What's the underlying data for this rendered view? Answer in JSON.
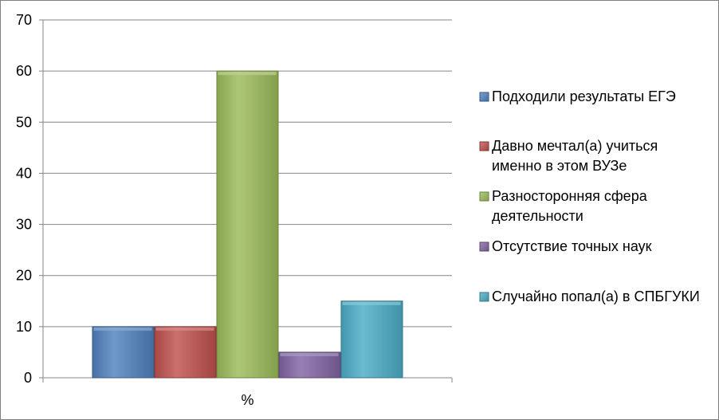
{
  "chart_data": {
    "type": "bar",
    "categories": [
      "%"
    ],
    "series": [
      {
        "name": "Подходили результаты ЕГЭ",
        "values": [
          10
        ],
        "color": "#4f81bd",
        "legend_lines": [
          "Подходили результаты ЕГЭ"
        ]
      },
      {
        "name": "Давно мечтал(а) учиться именно в этом ВУЗе",
        "values": [
          10
        ],
        "color": "#c0504d",
        "legend_lines": [
          "Давно мечтал(а) учиться",
          "именно в этом ВУЗе"
        ]
      },
      {
        "name": "Разносторонняя сфера деятельности",
        "values": [
          60
        ],
        "color": "#9bbb59",
        "legend_lines": [
          "Разносторонняя сфера",
          "деятельности"
        ]
      },
      {
        "name": "Отсутствие точных наук",
        "values": [
          5
        ],
        "color": "#8064a2",
        "legend_lines": [
          "Отсутствие точных наук"
        ]
      },
      {
        "name": "Случайно попал(а) в СПБГУКИ",
        "values": [
          15
        ],
        "color": "#4bacc6",
        "legend_lines": [
          "Случайно попал(а) в СПБГУКИ"
        ]
      }
    ],
    "title": "",
    "xlabel": "",
    "ylabel": "",
    "ylim": [
      0,
      70
    ],
    "yticks": [
      0,
      10,
      20,
      30,
      40,
      50,
      60,
      70
    ],
    "grid": true,
    "legend_position": "right"
  }
}
